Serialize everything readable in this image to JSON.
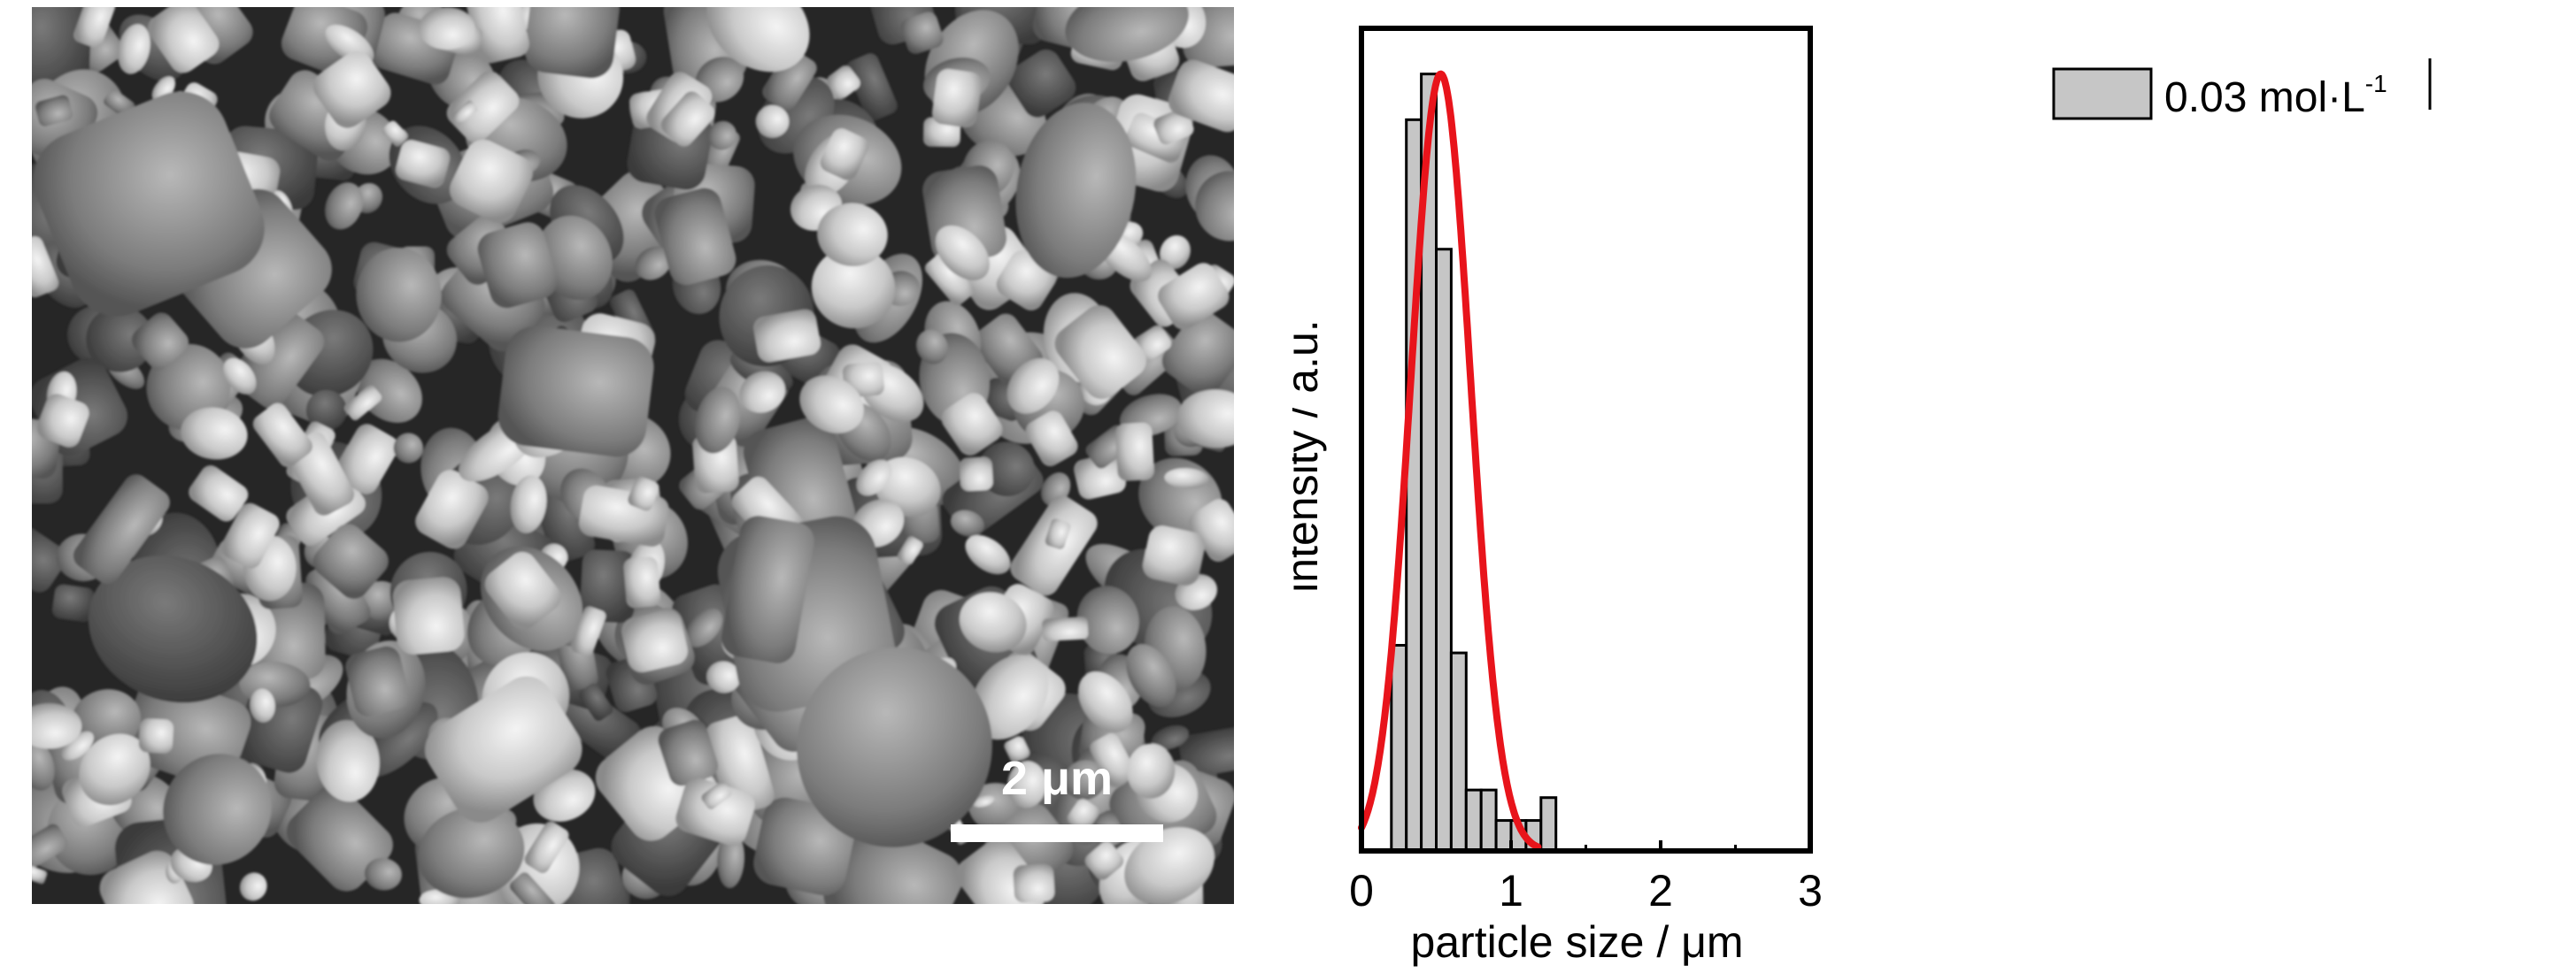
{
  "sem_image": {
    "scale_bar_label": "2 μm"
  },
  "chart_data": {
    "type": "bar",
    "subtype": "histogram",
    "xlabel": "particle size / μm",
    "ylabel": "intensity / a.u.",
    "xlim": [
      0,
      3
    ],
    "ylim": [
      0,
      1.08
    ],
    "x_ticks": [
      "0",
      "1",
      "2",
      "3"
    ],
    "x_tick_values": [
      0,
      1,
      2,
      3
    ],
    "bin_width": 0.1,
    "bin_starts": [
      0.2,
      0.3,
      0.4,
      0.5,
      0.6,
      0.7,
      0.8,
      0.9,
      1.0,
      1.1,
      1.2
    ],
    "values": [
      0.27,
      0.96,
      1.02,
      0.79,
      0.26,
      0.08,
      0.08,
      0.04,
      0.04,
      0.04,
      0.07
    ],
    "fit_curve": {
      "type": "gaussian",
      "color": "#e8141b",
      "mean": 0.53,
      "sigma": 0.2,
      "peak": 1.02,
      "x_range": [
        0,
        1.18
      ]
    },
    "legend": {
      "entries": [
        "0.03 mol·L"
      ],
      "superscript": "-1",
      "placement": "top-right"
    },
    "grid": false,
    "bar_color": "#c6c6c6"
  }
}
